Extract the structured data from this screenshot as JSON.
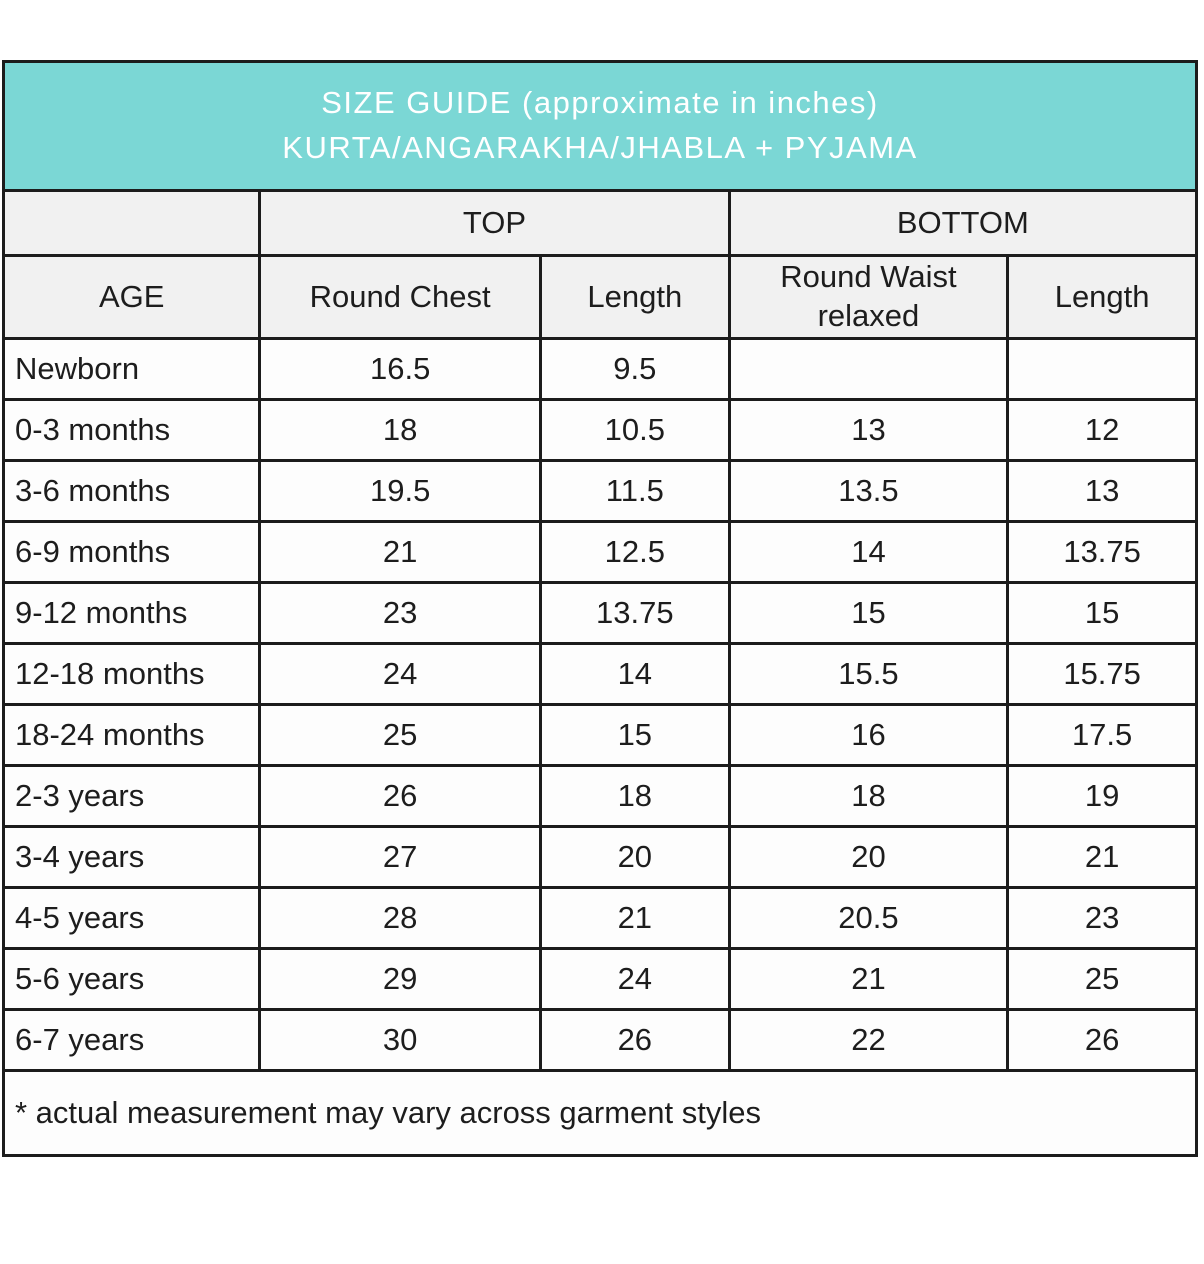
{
  "title": {
    "line1": "SIZE GUIDE (approximate in inches)",
    "line2": "KURTA/ANGARAKHA/JHABLA + PYJAMA"
  },
  "table": {
    "group_headers": {
      "age_spacer": "",
      "top": "TOP",
      "bottom": "BOTTOM"
    },
    "columns": {
      "age": "AGE",
      "round_chest": "Round Chest",
      "top_length": "Length",
      "round_waist": "Round Waist relaxed",
      "bottom_length": "Length"
    },
    "rows": [
      [
        "Newborn",
        "16.5",
        "9.5",
        "",
        ""
      ],
      [
        "0-3 months",
        "18",
        "10.5",
        "13",
        "12"
      ],
      [
        "3-6 months",
        "19.5",
        "11.5",
        "13.5",
        "13"
      ],
      [
        "6-9 months",
        "21",
        "12.5",
        "14",
        "13.75"
      ],
      [
        "9-12 months",
        "23",
        "13.75",
        "15",
        "15"
      ],
      [
        "12-18 months",
        "24",
        "14",
        "15.5",
        "15.75"
      ],
      [
        "18-24 months",
        "25",
        "15",
        "16",
        "17.5"
      ],
      [
        "2-3 years",
        "26",
        "18",
        "18",
        "19"
      ],
      [
        "3-4 years",
        "27",
        "20",
        "20",
        "21"
      ],
      [
        "4-5 years",
        "28",
        "21",
        "20.5",
        "23"
      ],
      [
        "5-6 years",
        "29",
        "24",
        "21",
        "25"
      ],
      [
        "6-7 years",
        "30",
        "26",
        "22",
        "26"
      ]
    ]
  },
  "footnote": "* actual measurement may vary across garment styles",
  "colors": {
    "banner_teal": "#7bd7d5",
    "header_cell_gray": "#f1f1f1",
    "border_dark": "#1c1c1c",
    "banner_text": "#ffffff",
    "body_text": "#1d1d1d"
  }
}
